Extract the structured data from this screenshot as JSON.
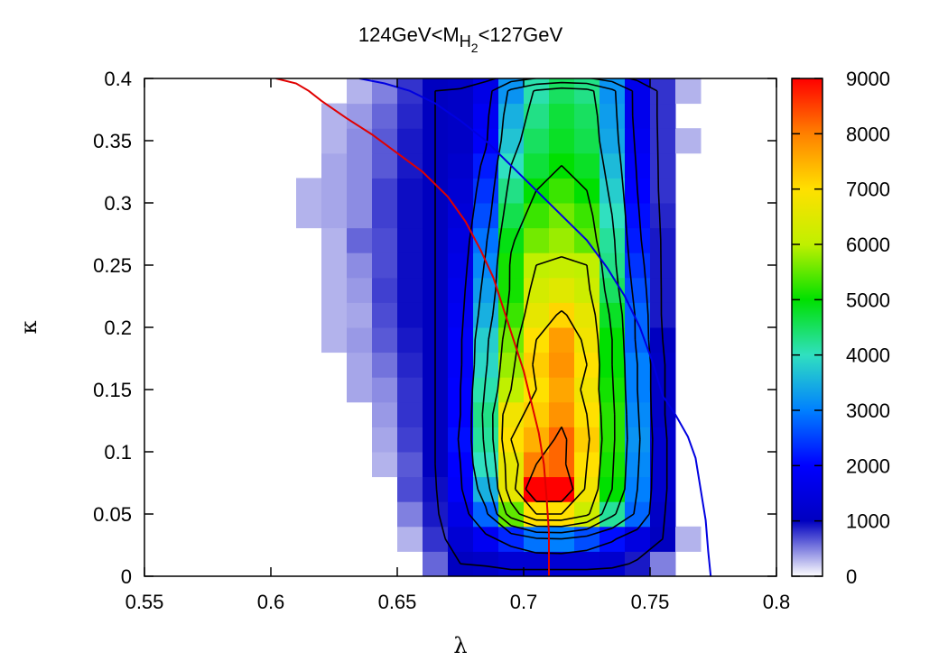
{
  "chart_data": {
    "type": "heatmap",
    "title_parts": {
      "pre": "124GeV<M",
      "sub": "H",
      "subsub": "2",
      "post": "<127GeV"
    },
    "xlabel": "λ",
    "ylabel": "κ",
    "xlim": [
      0.55,
      0.8
    ],
    "ylim": [
      0,
      0.4
    ],
    "x_ticks": [
      "0.55",
      "0.6",
      "0.65",
      "0.7",
      "0.75",
      "0.8"
    ],
    "y_ticks": [
      "0",
      "0.05",
      "0.1",
      "0.15",
      "0.2",
      "0.25",
      "0.3",
      "0.35",
      "0.4"
    ],
    "colorbar_ticks": [
      "0",
      "1000",
      "2000",
      "3000",
      "4000",
      "5000",
      "6000",
      "7000",
      "8000",
      "9000"
    ],
    "colorbar_range": [
      0,
      9000
    ],
    "colormap": [
      "#ffffff",
      "#0000c0",
      "#0000ff",
      "#0080ff",
      "#30e0c0",
      "#00e000",
      "#c0f000",
      "#ffe000",
      "#ff8000",
      "#ff0000"
    ],
    "bin_width_x": 0.01,
    "bin_width_y": 0.02,
    "x_bins": [
      0.61,
      0.62,
      0.63,
      0.64,
      0.65,
      0.66,
      0.67,
      0.68,
      0.69,
      0.7,
      0.71,
      0.72,
      0.73,
      0.74,
      0.75,
      0.76,
      0.77
    ],
    "y_bins": [
      0.0,
      0.02,
      0.04,
      0.06,
      0.08,
      0.1,
      0.12,
      0.14,
      0.16,
      0.18,
      0.2,
      0.22,
      0.24,
      0.26,
      0.28,
      0.3,
      0.32,
      0.34,
      0.36,
      0.38
    ],
    "z": [
      [
        0,
        0,
        0,
        0,
        0,
        600,
        1000,
        1100,
        1300,
        1300,
        1300,
        1300,
        1200,
        900,
        500,
        0,
        0
      ],
      [
        0,
        0,
        0,
        0,
        300,
        800,
        1300,
        1800,
        2300,
        2900,
        3000,
        2600,
        2100,
        1500,
        1000,
        300,
        0
      ],
      [
        0,
        0,
        0,
        0,
        500,
        900,
        1600,
        2800,
        5500,
        7000,
        7000,
        6200,
        4200,
        2800,
        1100,
        0,
        0
      ],
      [
        0,
        0,
        0,
        0,
        700,
        950,
        1900,
        3500,
        6600,
        9000,
        9000,
        6800,
        5000,
        3000,
        1200,
        0,
        0
      ],
      [
        0,
        0,
        0,
        300,
        650,
        1000,
        2000,
        4000,
        6600,
        8000,
        8200,
        7000,
        5100,
        3100,
        1200,
        0,
        0
      ],
      [
        0,
        0,
        0,
        350,
        750,
        1000,
        2100,
        4200,
        7000,
        7500,
        8200,
        7200,
        5200,
        3200,
        1200,
        0,
        0
      ],
      [
        0,
        0,
        0,
        400,
        800,
        1000,
        2000,
        4300,
        6800,
        7200,
        7800,
        7000,
        5200,
        3100,
        1100,
        0,
        0
      ],
      [
        0,
        0,
        350,
        450,
        800,
        1000,
        2000,
        4100,
        6000,
        7000,
        7600,
        6800,
        5100,
        3000,
        1100,
        0,
        0
      ],
      [
        0,
        0,
        350,
        550,
        850,
        1000,
        1900,
        3900,
        5800,
        7200,
        7800,
        7000,
        5000,
        3000,
        1100,
        0,
        0
      ],
      [
        0,
        300,
        400,
        650,
        900,
        1000,
        1900,
        3800,
        5600,
        7000,
        7700,
        6800,
        5000,
        2800,
        1000,
        0,
        0
      ],
      [
        0,
        300,
        350,
        700,
        950,
        1000,
        1800,
        3500,
        5300,
        6600,
        7100,
        6600,
        4800,
        2800,
        900,
        0,
        0
      ],
      [
        0,
        300,
        400,
        750,
        950,
        1000,
        1700,
        3300,
        5100,
        6300,
        6500,
        6200,
        4500,
        2600,
        900,
        0,
        0
      ],
      [
        0,
        300,
        450,
        700,
        950,
        1000,
        1600,
        3100,
        5100,
        6000,
        6100,
        6000,
        4300,
        2400,
        900,
        0,
        0
      ],
      [
        0,
        300,
        600,
        700,
        950,
        1000,
        1500,
        2900,
        4900,
        5600,
        5800,
        5500,
        4200,
        2200,
        900,
        0,
        0
      ],
      [
        300,
        350,
        450,
        750,
        950,
        1000,
        1400,
        2600,
        4600,
        5300,
        5600,
        5300,
        4000,
        2100,
        850,
        0,
        0
      ],
      [
        300,
        350,
        450,
        750,
        950,
        1000,
        1300,
        2400,
        4300,
        5000,
        5300,
        5000,
        3800,
        2000,
        800,
        0,
        0
      ],
      [
        0,
        350,
        450,
        650,
        900,
        1000,
        1200,
        2200,
        4000,
        4700,
        5000,
        4800,
        3600,
        1900,
        800,
        0,
        0
      ],
      [
        0,
        300,
        450,
        650,
        900,
        1000,
        1100,
        1900,
        3700,
        4500,
        4800,
        4600,
        3400,
        1800,
        800,
        300,
        0
      ],
      [
        0,
        300,
        400,
        600,
        850,
        1000,
        1100,
        1800,
        3500,
        4300,
        4700,
        4500,
        3300,
        1700,
        800,
        0,
        0
      ],
      [
        0,
        0,
        300,
        500,
        800,
        1000,
        1100,
        1600,
        3200,
        4100,
        4500,
        4300,
        3200,
        1700,
        800,
        300,
        0
      ]
    ],
    "contour_levels": [
      1000,
      2000,
      3000,
      4000,
      5000,
      6000,
      7000,
      8000
    ],
    "red_curve": {
      "color": "#e00000",
      "x": [
        0.602,
        0.61,
        0.615,
        0.62,
        0.63,
        0.64,
        0.65,
        0.66,
        0.67,
        0.677,
        0.683,
        0.688,
        0.692,
        0.696,
        0.7,
        0.703,
        0.706,
        0.708,
        0.709,
        0.71,
        0.71
      ],
      "y": [
        0.4,
        0.396,
        0.39,
        0.382,
        0.368,
        0.355,
        0.34,
        0.325,
        0.305,
        0.285,
        0.262,
        0.24,
        0.215,
        0.19,
        0.165,
        0.14,
        0.115,
        0.09,
        0.065,
        0.035,
        0.0
      ]
    },
    "blue_curve": {
      "color": "#0000e0",
      "x": [
        0.635,
        0.645,
        0.655,
        0.665,
        0.675,
        0.685,
        0.695,
        0.705,
        0.715,
        0.725,
        0.733,
        0.74,
        0.746,
        0.751,
        0.755,
        0.76,
        0.765,
        0.768,
        0.77,
        0.772,
        0.773,
        0.774
      ],
      "y": [
        0.4,
        0.396,
        0.39,
        0.38,
        0.366,
        0.35,
        0.33,
        0.31,
        0.29,
        0.27,
        0.248,
        0.225,
        0.2,
        0.172,
        0.145,
        0.13,
        0.112,
        0.095,
        0.07,
        0.045,
        0.02,
        0.0
      ]
    }
  }
}
